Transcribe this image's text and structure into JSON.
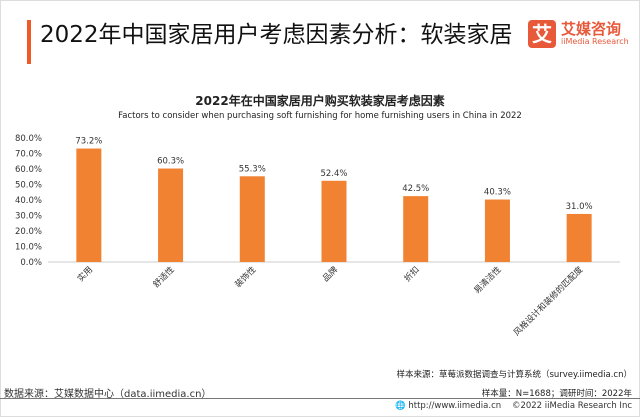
{
  "header": {
    "title": "2022年中国家居用户考虑因素分析：软装家居",
    "logo_mark": "艾",
    "logo_cn": "艾媒咨询",
    "logo_en": "iiMedia Research"
  },
  "chart_data": {
    "type": "bar",
    "title": "2022年在中国家居用户购买软装家居考虑因素",
    "subtitle": "Factors to consider when purchasing soft furnishing for home furnishing users in China in 2022",
    "categories": [
      "实用",
      "舒适性",
      "装饰性",
      "品牌",
      "折扣",
      "易清洁性",
      "风格设计和装修的匹配度"
    ],
    "values": [
      73.2,
      60.3,
      55.3,
      52.4,
      42.5,
      40.3,
      31.0
    ],
    "ylim": [
      0,
      80
    ],
    "yticks": [
      "0.0%",
      "10.0%",
      "20.0%",
      "30.0%",
      "40.0%",
      "50.0%",
      "60.0%",
      "70.0%",
      "80.0%"
    ],
    "data_labels": [
      "73.2%",
      "60.3%",
      "55.3%",
      "52.4%",
      "42.5%",
      "40.3%",
      "31.0%"
    ],
    "bar_color": "#f08232",
    "grid": false
  },
  "notes": {
    "sample_source": "样本来源：草莓派数据调查与计算系统（survey.iimedia.cn）",
    "sample_size": "样本量：N=1688；调研时间：2022年",
    "data_source": "数据来源：艾媒数据中心（data.iimedia.cn）"
  },
  "footer": {
    "url": "http://www.iimedia.cn",
    "copyright": "©2022  iiMedia Research  Inc"
  }
}
